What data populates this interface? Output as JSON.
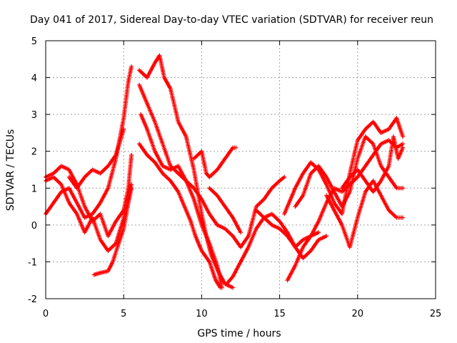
{
  "chart_data": {
    "type": "scatter",
    "title": "Day 041 of 2017, Sidereal Day-to-day VTEC variation (SDTVAR) for receiver reun",
    "xlabel": "GPS time / hours",
    "ylabel": "SDTVAR / TECUs",
    "xlim": [
      0,
      25
    ],
    "ylim": [
      -2,
      5
    ],
    "xticks": [
      "0",
      "5",
      "10",
      "15",
      "20",
      "25"
    ],
    "yticks": [
      "-2",
      "-1",
      "0",
      "1",
      "2",
      "3",
      "4",
      "5"
    ],
    "grid": true,
    "marker": "plus",
    "color": "#ff0000",
    "series": [
      {
        "name": "track-1",
        "points": [
          [
            0,
            1.3
          ],
          [
            0.5,
            1.4
          ],
          [
            1,
            1.6
          ],
          [
            1.5,
            1.5
          ],
          [
            2,
            1.1
          ],
          [
            2.5,
            0.5
          ],
          [
            3,
            0.1
          ],
          [
            3.5,
            0.3
          ],
          [
            4,
            -0.3
          ],
          [
            4.5,
            0.1
          ],
          [
            5,
            0.4
          ],
          [
            5.3,
            1.0
          ],
          [
            5.5,
            1.9
          ]
        ]
      },
      {
        "name": "track-2",
        "points": [
          [
            0,
            0.3
          ],
          [
            0.5,
            0.6
          ],
          [
            1,
            0.9
          ],
          [
            1.5,
            1.0
          ],
          [
            2,
            0.6
          ],
          [
            2.5,
            0.2
          ],
          [
            3,
            0.3
          ],
          [
            3.5,
            0.6
          ],
          [
            4,
            1.0
          ],
          [
            4.5,
            1.8
          ],
          [
            5,
            2.9
          ],
          [
            5.3,
            3.9
          ],
          [
            5.5,
            4.3
          ]
        ]
      },
      {
        "name": "track-3",
        "points": [
          [
            0,
            1.2
          ],
          [
            0.5,
            1.3
          ],
          [
            1,
            1.1
          ],
          [
            1.5,
            0.6
          ],
          [
            2,
            0.3
          ],
          [
            2.5,
            -0.2
          ],
          [
            3,
            0.2
          ],
          [
            3.5,
            -0.4
          ],
          [
            4,
            -0.7
          ],
          [
            4.5,
            -0.5
          ],
          [
            5,
            0.2
          ],
          [
            5.5,
            1.1
          ]
        ]
      },
      {
        "name": "track-4",
        "points": [
          [
            1.5,
            1.3
          ],
          [
            2,
            1.0
          ],
          [
            2.5,
            1.3
          ],
          [
            3,
            1.5
          ],
          [
            3.5,
            1.4
          ],
          [
            4,
            1.6
          ],
          [
            4.5,
            1.9
          ],
          [
            5,
            2.6
          ]
        ]
      },
      {
        "name": "track-5",
        "points": [
          [
            3.1,
            -1.35
          ],
          [
            3.5,
            -1.3
          ],
          [
            4,
            -1.25
          ],
          [
            4.3,
            -1.0
          ],
          [
            4.6,
            -0.6
          ],
          [
            5,
            -0.1
          ],
          [
            5.3,
            0.6
          ],
          [
            5.5,
            1.0
          ]
        ]
      },
      {
        "name": "track-6",
        "points": [
          [
            6,
            4.2
          ],
          [
            6.5,
            4.0
          ],
          [
            7,
            4.4
          ],
          [
            7.3,
            4.6
          ],
          [
            7.6,
            4.0
          ],
          [
            8,
            3.7
          ],
          [
            8.5,
            2.8
          ],
          [
            9,
            2.4
          ],
          [
            9.5,
            1.5
          ],
          [
            10,
            0.3
          ],
          [
            10.3,
            -0.3
          ],
          [
            10.6,
            -0.8
          ],
          [
            11,
            -1.2
          ],
          [
            11.5,
            -1.6
          ],
          [
            12,
            -1.7
          ]
        ]
      },
      {
        "name": "track-7",
        "points": [
          [
            6,
            3.8
          ],
          [
            6.5,
            3.3
          ],
          [
            7,
            2.8
          ],
          [
            7.5,
            2.2
          ],
          [
            8,
            1.6
          ],
          [
            8.5,
            1.4
          ],
          [
            9,
            1.2
          ],
          [
            9.5,
            0.7
          ],
          [
            10,
            0.0
          ],
          [
            10.5,
            -0.5
          ],
          [
            11,
            -1.1
          ],
          [
            11.3,
            -1.7
          ]
        ]
      },
      {
        "name": "track-8",
        "points": [
          [
            6.1,
            3.0
          ],
          [
            6.5,
            2.6
          ],
          [
            7,
            2.0
          ],
          [
            7.5,
            1.6
          ],
          [
            8,
            1.5
          ],
          [
            8.5,
            1.6
          ],
          [
            9,
            1.2
          ],
          [
            9.5,
            1.0
          ],
          [
            10,
            0.7
          ],
          [
            10.5,
            0.3
          ],
          [
            11,
            0.0
          ]
        ]
      },
      {
        "name": "track-9",
        "points": [
          [
            6,
            2.2
          ],
          [
            6.5,
            1.9
          ],
          [
            7,
            1.7
          ],
          [
            7.5,
            1.4
          ],
          [
            8,
            1.2
          ],
          [
            8.5,
            0.9
          ],
          [
            9,
            0.4
          ],
          [
            9.3,
            0.1
          ],
          [
            9.6,
            -0.3
          ],
          [
            10,
            -0.7
          ],
          [
            10.5,
            -1.0
          ],
          [
            10.9,
            -1.5
          ],
          [
            11.2,
            -1.7
          ]
        ]
      },
      {
        "name": "track-10",
        "points": [
          [
            9.5,
            1.8
          ],
          [
            10,
            2.0
          ],
          [
            10.3,
            1.4
          ],
          [
            10.5,
            1.3
          ],
          [
            11,
            1.5
          ],
          [
            11.5,
            1.8
          ],
          [
            12,
            2.1
          ],
          [
            12.2,
            2.1
          ]
        ]
      },
      {
        "name": "track-11",
        "points": [
          [
            10.5,
            1.0
          ],
          [
            11,
            0.8
          ],
          [
            11.5,
            0.5
          ],
          [
            12,
            0.2
          ],
          [
            12.5,
            -0.2
          ]
        ]
      },
      {
        "name": "track-12",
        "points": [
          [
            11,
            0.0
          ],
          [
            11.5,
            -0.1
          ],
          [
            12,
            -0.3
          ],
          [
            12.5,
            -0.6
          ],
          [
            13,
            -0.3
          ],
          [
            13.5,
            0.5
          ],
          [
            14,
            0.7
          ],
          [
            14.5,
            1.0
          ],
          [
            15,
            1.2
          ],
          [
            15.3,
            1.3
          ]
        ]
      },
      {
        "name": "track-13",
        "points": [
          [
            11.6,
            -1.6
          ],
          [
            12,
            -1.4
          ],
          [
            12.5,
            -1.0
          ],
          [
            13,
            -0.6
          ],
          [
            13.5,
            -0.1
          ],
          [
            14,
            0.2
          ],
          [
            14.5,
            0.3
          ],
          [
            15,
            0.1
          ],
          [
            15.5,
            -0.2
          ],
          [
            16,
            -0.6
          ],
          [
            16.5,
            -0.9
          ],
          [
            17,
            -0.7
          ],
          [
            17.5,
            -0.4
          ],
          [
            18,
            -0.3
          ]
        ]
      },
      {
        "name": "track-14",
        "points": [
          [
            13.5,
            0.4
          ],
          [
            14,
            0.2
          ],
          [
            14.5,
            0.0
          ],
          [
            15,
            -0.1
          ],
          [
            15.5,
            -0.3
          ],
          [
            16,
            -0.6
          ],
          [
            16.5,
            -0.4
          ],
          [
            17,
            -0.3
          ],
          [
            17.5,
            -0.2
          ]
        ]
      },
      {
        "name": "track-15",
        "points": [
          [
            15.3,
            0.3
          ],
          [
            15.6,
            0.6
          ],
          [
            16,
            1.0
          ],
          [
            16.5,
            1.4
          ],
          [
            17,
            1.7
          ],
          [
            17.5,
            1.5
          ],
          [
            18,
            1.1
          ],
          [
            18.5,
            0.6
          ],
          [
            19,
            0.3
          ],
          [
            19.5,
            1.4
          ],
          [
            20,
            2.3
          ],
          [
            20.5,
            2.6
          ],
          [
            21,
            2.8
          ],
          [
            21.5,
            2.5
          ],
          [
            22,
            2.6
          ],
          [
            22.5,
            2.9
          ],
          [
            22.9,
            2.4
          ]
        ]
      },
      {
        "name": "track-16",
        "points": [
          [
            15.5,
            -1.5
          ],
          [
            16,
            -1.1
          ],
          [
            16.5,
            -0.6
          ],
          [
            17,
            -0.3
          ],
          [
            17.5,
            0.1
          ],
          [
            18,
            0.6
          ],
          [
            18.5,
            1.0
          ],
          [
            19,
            0.9
          ],
          [
            19.5,
            1.1
          ],
          [
            20,
            1.3
          ],
          [
            20.5,
            1.6
          ],
          [
            21,
            1.9
          ],
          [
            21.5,
            2.2
          ],
          [
            22,
            2.3
          ],
          [
            22.5,
            2.1
          ],
          [
            22.9,
            2.2
          ]
        ]
      },
      {
        "name": "track-17",
        "points": [
          [
            16,
            0.5
          ],
          [
            16.5,
            0.8
          ],
          [
            17,
            1.4
          ],
          [
            17.5,
            1.6
          ],
          [
            18,
            1.3
          ],
          [
            18.5,
            0.9
          ],
          [
            19,
            0.5
          ],
          [
            19.5,
            0.9
          ],
          [
            20,
            1.8
          ],
          [
            20.5,
            2.4
          ],
          [
            21,
            2.2
          ],
          [
            21.5,
            1.6
          ],
          [
            22,
            1.3
          ],
          [
            22.5,
            1.0
          ],
          [
            22.9,
            1.0
          ]
        ]
      },
      {
        "name": "track-18",
        "points": [
          [
            18,
            0.8
          ],
          [
            18.5,
            0.4
          ],
          [
            19,
            0.0
          ],
          [
            19.5,
            -0.6
          ],
          [
            20,
            0.2
          ],
          [
            20.5,
            0.9
          ],
          [
            21,
            1.2
          ],
          [
            21.5,
            0.8
          ],
          [
            22,
            0.4
          ],
          [
            22.5,
            0.2
          ],
          [
            22.9,
            0.2
          ]
        ]
      },
      {
        "name": "track-19",
        "points": [
          [
            19,
            1.0
          ],
          [
            19.5,
            1.3
          ],
          [
            20,
            1.5
          ],
          [
            20.5,
            1.2
          ],
          [
            21,
            0.9
          ],
          [
            21.5,
            1.2
          ],
          [
            22,
            1.6
          ],
          [
            22.3,
            2.4
          ],
          [
            22.6,
            1.8
          ],
          [
            22.9,
            2.1
          ]
        ]
      }
    ]
  }
}
